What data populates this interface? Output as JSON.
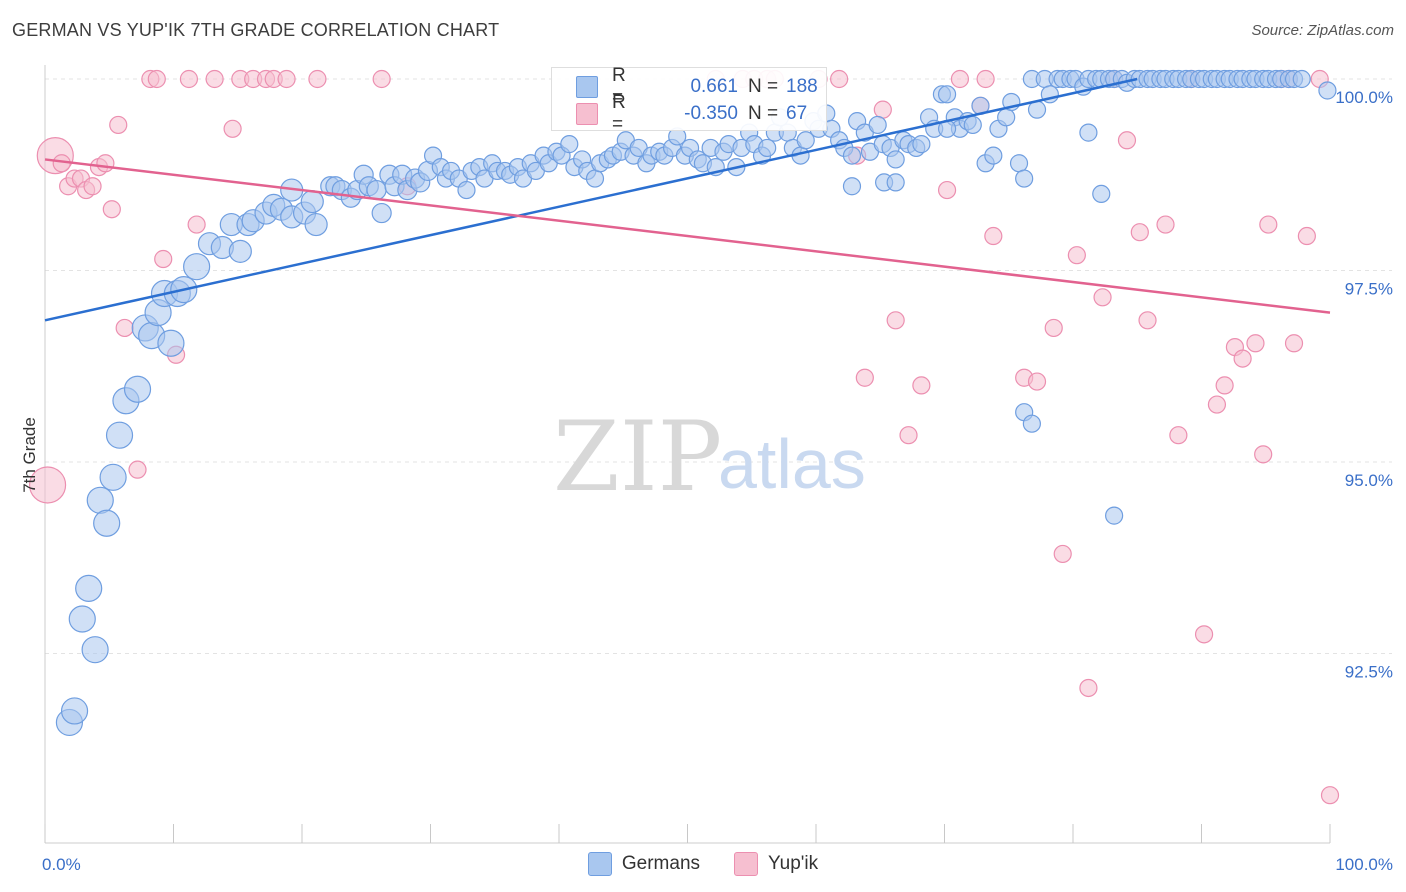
{
  "title": "GERMAN VS YUP'IK 7TH GRADE CORRELATION CHART",
  "source": "Source: ZipAtlas.com",
  "watermark": {
    "zip": "ZIP",
    "atlas": "atlas"
  },
  "legend": {
    "series": [
      {
        "r_label": "R =",
        "r_value": "0.661",
        "n_label": "N =",
        "n_value": "188"
      },
      {
        "r_label": "R =",
        "r_value": "-0.350",
        "n_label": "N =",
        "n_value": "67"
      }
    ]
  },
  "bottom_legend": [
    "Germans",
    "Yup'ik"
  ],
  "colors": {
    "germans_fill": "#a9c7ef",
    "germans_stroke": "#6f9ee0",
    "germans_line": "#2b6fd0",
    "yupik_fill": "#f6bfd0",
    "yupik_stroke": "#ec8fb0",
    "yupik_line": "#e2628f",
    "tick_text": "#3a6fc8"
  },
  "chart_data": {
    "type": "scatter",
    "title": "GERMAN VS YUP'IK 7TH GRADE CORRELATION CHART",
    "xlabel": "",
    "ylabel": "7th Grade",
    "xlim": [
      0,
      100
    ],
    "ylim": [
      90.2,
      100.3
    ],
    "x_tick_labels": [
      {
        "value": 0,
        "label": "0.0%"
      },
      {
        "value": 100,
        "label": "100.0%"
      }
    ],
    "y_tick_labels": [
      {
        "value": 100,
        "label": "100.0%"
      },
      {
        "value": 97.5,
        "label": "97.5%"
      },
      {
        "value": 95,
        "label": "95.0%"
      },
      {
        "value": 92.5,
        "label": "92.5%"
      }
    ],
    "grid": true,
    "legend_position": "top-center",
    "series": [
      {
        "name": "Germans",
        "trend": {
          "x": [
            0,
            85
          ],
          "y": [
            96.85,
            100.0
          ]
        },
        "points": [
          [
            1.9,
            91.6
          ],
          [
            2.3,
            91.75
          ],
          [
            2.9,
            92.95
          ],
          [
            3.4,
            93.35
          ],
          [
            3.9,
            92.55
          ],
          [
            4.3,
            94.5
          ],
          [
            4.8,
            94.2
          ],
          [
            5.3,
            94.8
          ],
          [
            5.8,
            95.35
          ],
          [
            6.3,
            95.8
          ],
          [
            7.2,
            95.95
          ],
          [
            7.8,
            96.75
          ],
          [
            8.3,
            96.65
          ],
          [
            8.8,
            96.95
          ],
          [
            9.8,
            96.55
          ],
          [
            9.3,
            97.2
          ],
          [
            10.3,
            97.2
          ],
          [
            10.8,
            97.25
          ],
          [
            11.8,
            97.55
          ],
          [
            12.8,
            97.85
          ],
          [
            13.8,
            97.8
          ],
          [
            14.5,
            98.1
          ],
          [
            15.2,
            97.75
          ],
          [
            15.8,
            98.1
          ],
          [
            16.2,
            98.15
          ],
          [
            17.2,
            98.25
          ],
          [
            17.8,
            98.35
          ],
          [
            18.4,
            98.3
          ],
          [
            19.2,
            98.55
          ],
          [
            19.2,
            98.2
          ],
          [
            20.2,
            98.25
          ],
          [
            20.8,
            98.4
          ],
          [
            21.1,
            98.1
          ],
          [
            22.2,
            98.6
          ],
          [
            22.6,
            98.6
          ],
          [
            23.1,
            98.55
          ],
          [
            23.8,
            98.45
          ],
          [
            24.3,
            98.55
          ],
          [
            24.8,
            98.75
          ],
          [
            25.2,
            98.6
          ],
          [
            25.8,
            98.55
          ],
          [
            26.2,
            98.25
          ],
          [
            26.8,
            98.75
          ],
          [
            27.2,
            98.6
          ],
          [
            27.8,
            98.75
          ],
          [
            28.2,
            98.55
          ],
          [
            28.8,
            98.7
          ],
          [
            29.2,
            98.65
          ],
          [
            29.8,
            98.8
          ],
          [
            30.2,
            99.0
          ],
          [
            30.8,
            98.85
          ],
          [
            31.2,
            98.7
          ],
          [
            31.6,
            98.8
          ],
          [
            32.2,
            98.7
          ],
          [
            32.8,
            98.55
          ],
          [
            33.2,
            98.8
          ],
          [
            33.8,
            98.85
          ],
          [
            34.2,
            98.7
          ],
          [
            34.8,
            98.9
          ],
          [
            35.2,
            98.8
          ],
          [
            35.8,
            98.8
          ],
          [
            36.2,
            98.75
          ],
          [
            36.8,
            98.85
          ],
          [
            37.2,
            98.7
          ],
          [
            37.8,
            98.9
          ],
          [
            38.2,
            98.8
          ],
          [
            38.8,
            99.0
          ],
          [
            39.2,
            98.9
          ],
          [
            39.8,
            99.05
          ],
          [
            40.2,
            99.0
          ],
          [
            40.8,
            99.15
          ],
          [
            41.2,
            98.85
          ],
          [
            41.8,
            98.95
          ],
          [
            42.2,
            98.8
          ],
          [
            42.8,
            98.7
          ],
          [
            43.2,
            98.9
          ],
          [
            43.8,
            98.95
          ],
          [
            44.2,
            99.0
          ],
          [
            44.8,
            99.05
          ],
          [
            45.2,
            99.2
          ],
          [
            45.8,
            99.0
          ],
          [
            46.2,
            99.1
          ],
          [
            46.8,
            98.9
          ],
          [
            47.2,
            99.0
          ],
          [
            47.8,
            99.05
          ],
          [
            48.2,
            99.0
          ],
          [
            48.8,
            99.1
          ],
          [
            49.2,
            99.25
          ],
          [
            49.8,
            99.0
          ],
          [
            50.2,
            99.1
          ],
          [
            50.8,
            98.95
          ],
          [
            51.2,
            98.9
          ],
          [
            51.8,
            99.1
          ],
          [
            52.2,
            98.85
          ],
          [
            52.8,
            99.05
          ],
          [
            53.2,
            99.15
          ],
          [
            53.8,
            98.85
          ],
          [
            54.2,
            99.1
          ],
          [
            54.8,
            99.3
          ],
          [
            55.2,
            99.15
          ],
          [
            55.8,
            99.0
          ],
          [
            56.2,
            99.1
          ],
          [
            56.8,
            99.3
          ],
          [
            57.2,
            99.5
          ],
          [
            57.8,
            99.3
          ],
          [
            58.2,
            99.1
          ],
          [
            58.8,
            99.0
          ],
          [
            59.2,
            99.2
          ],
          [
            59.8,
            99.45
          ],
          [
            60.2,
            99.35
          ],
          [
            60.8,
            99.55
          ],
          [
            61.2,
            99.35
          ],
          [
            61.8,
            99.2
          ],
          [
            62.2,
            99.1
          ],
          [
            62.8,
            99.0
          ],
          [
            63.2,
            99.45
          ],
          [
            63.8,
            99.3
          ],
          [
            64.2,
            99.05
          ],
          [
            64.8,
            99.4
          ],
          [
            65.2,
            99.15
          ],
          [
            65.8,
            99.1
          ],
          [
            66.2,
            98.95
          ],
          [
            66.8,
            99.2
          ],
          [
            67.2,
            99.15
          ],
          [
            67.8,
            99.1
          ],
          [
            68.2,
            99.15
          ],
          [
            68.8,
            99.5
          ],
          [
            69.2,
            99.35
          ],
          [
            69.8,
            99.8
          ],
          [
            70.2,
            99.8
          ],
          [
            70.8,
            99.5
          ],
          [
            71.2,
            99.35
          ],
          [
            71.8,
            99.45
          ],
          [
            72.2,
            99.4
          ],
          [
            72.8,
            99.65
          ],
          [
            73.2,
            98.9
          ],
          [
            73.8,
            99.0
          ],
          [
            74.2,
            99.35
          ],
          [
            74.8,
            99.5
          ],
          [
            75.2,
            99.7
          ],
          [
            75.8,
            98.9
          ],
          [
            76.2,
            98.7
          ],
          [
            76.8,
            100.0
          ],
          [
            77.2,
            99.6
          ],
          [
            77.8,
            100.0
          ],
          [
            78.2,
            99.8
          ],
          [
            78.8,
            100.0
          ],
          [
            79.2,
            100.0
          ],
          [
            79.8,
            100.0
          ],
          [
            80.2,
            100.0
          ],
          [
            80.8,
            99.9
          ],
          [
            81.2,
            100.0
          ],
          [
            81.8,
            100.0
          ],
          [
            82.2,
            100.0
          ],
          [
            82.8,
            100.0
          ],
          [
            83.2,
            100.0
          ],
          [
            83.8,
            100.0
          ],
          [
            84.2,
            99.95
          ],
          [
            84.8,
            100.0
          ],
          [
            85.2,
            100.0
          ],
          [
            85.8,
            100.0
          ],
          [
            86.2,
            100.0
          ],
          [
            86.8,
            100.0
          ],
          [
            87.2,
            100.0
          ],
          [
            87.8,
            100.0
          ],
          [
            88.2,
            100.0
          ],
          [
            88.8,
            100.0
          ],
          [
            89.2,
            100.0
          ],
          [
            89.8,
            100.0
          ],
          [
            90.2,
            100.0
          ],
          [
            90.8,
            100.0
          ],
          [
            91.2,
            100.0
          ],
          [
            91.8,
            100.0
          ],
          [
            92.2,
            100.0
          ],
          [
            92.8,
            100.0
          ],
          [
            93.2,
            100.0
          ],
          [
            93.8,
            100.0
          ],
          [
            94.2,
            100.0
          ],
          [
            94.8,
            100.0
          ],
          [
            95.2,
            100.0
          ],
          [
            95.8,
            100.0
          ],
          [
            96.2,
            100.0
          ],
          [
            96.8,
            100.0
          ],
          [
            97.2,
            100.0
          ],
          [
            97.8,
            100.0
          ],
          [
            99.8,
            99.85
          ],
          [
            81.2,
            99.3
          ],
          [
            82.2,
            98.5
          ],
          [
            83.2,
            94.3
          ],
          [
            76.2,
            95.65
          ],
          [
            76.8,
            95.5
          ],
          [
            62.8,
            98.6
          ],
          [
            65.3,
            98.65
          ],
          [
            66.2,
            98.65
          ],
          [
            70.2,
            99.35
          ]
        ]
      },
      {
        "name": "Yup'ik",
        "trend": {
          "x": [
            0,
            100
          ],
          "y": [
            98.95,
            96.95
          ]
        },
        "points": [
          [
            0.2,
            94.7
          ],
          [
            0.8,
            99.0
          ],
          [
            1.3,
            98.9
          ],
          [
            1.8,
            98.6
          ],
          [
            2.3,
            98.7
          ],
          [
            2.8,
            98.7
          ],
          [
            3.2,
            98.55
          ],
          [
            3.7,
            98.6
          ],
          [
            4.2,
            98.85
          ],
          [
            4.7,
            98.9
          ],
          [
            5.2,
            98.3
          ],
          [
            5.7,
            99.4
          ],
          [
            6.2,
            96.75
          ],
          [
            7.2,
            94.9
          ],
          [
            8.2,
            100.0
          ],
          [
            8.7,
            100.0
          ],
          [
            9.2,
            97.65
          ],
          [
            10.2,
            96.4
          ],
          [
            11.2,
            100.0
          ],
          [
            11.8,
            98.1
          ],
          [
            13.2,
            100.0
          ],
          [
            14.6,
            99.35
          ],
          [
            15.2,
            100.0
          ],
          [
            16.2,
            100.0
          ],
          [
            17.2,
            100.0
          ],
          [
            17.8,
            100.0
          ],
          [
            18.8,
            100.0
          ],
          [
            21.2,
            100.0
          ],
          [
            26.2,
            100.0
          ],
          [
            28.2,
            98.6
          ],
          [
            52.2,
            100.0
          ],
          [
            54.3,
            100.0
          ],
          [
            55.2,
            100.0
          ],
          [
            56.2,
            100.0
          ],
          [
            56.8,
            100.0
          ],
          [
            60.2,
            100.0
          ],
          [
            61.8,
            100.0
          ],
          [
            63.2,
            99.0
          ],
          [
            63.8,
            96.1
          ],
          [
            65.2,
            99.6
          ],
          [
            66.2,
            96.85
          ],
          [
            67.2,
            95.35
          ],
          [
            68.2,
            96.0
          ],
          [
            70.2,
            98.55
          ],
          [
            71.2,
            100.0
          ],
          [
            72.8,
            99.65
          ],
          [
            73.2,
            100.0
          ],
          [
            73.8,
            97.95
          ],
          [
            76.2,
            96.1
          ],
          [
            77.2,
            96.05
          ],
          [
            78.5,
            96.75
          ],
          [
            79.2,
            93.8
          ],
          [
            80.3,
            97.7
          ],
          [
            81.2,
            92.05
          ],
          [
            82.3,
            97.15
          ],
          [
            83.2,
            100.0
          ],
          [
            84.2,
            99.2
          ],
          [
            85.2,
            98.0
          ],
          [
            85.8,
            96.85
          ],
          [
            87.2,
            98.1
          ],
          [
            88.2,
            95.35
          ],
          [
            89.2,
            100.0
          ],
          [
            90.2,
            92.75
          ],
          [
            91.2,
            95.75
          ],
          [
            91.8,
            96.0
          ],
          [
            92.6,
            96.5
          ],
          [
            93.2,
            96.35
          ],
          [
            94.2,
            96.55
          ],
          [
            94.8,
            95.1
          ],
          [
            95.2,
            98.1
          ],
          [
            96.2,
            100.0
          ],
          [
            96.8,
            100.0
          ],
          [
            97.2,
            96.55
          ],
          [
            98.2,
            97.95
          ],
          [
            99.2,
            100.0
          ],
          [
            100.0,
            90.65
          ]
        ]
      }
    ]
  }
}
